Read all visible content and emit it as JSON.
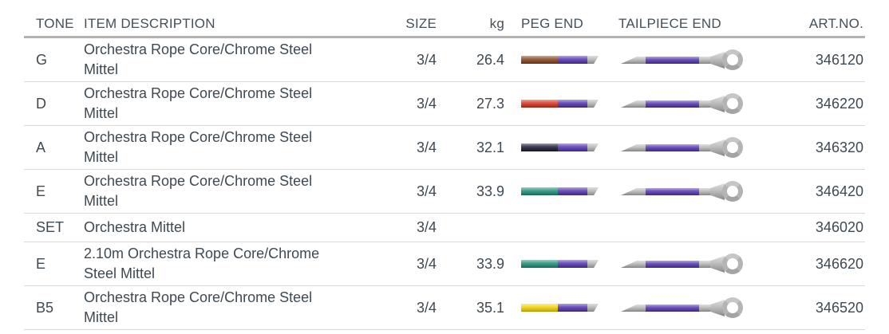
{
  "table": {
    "headers": {
      "tone": "TONE",
      "description": "ITEM DESCRIPTION",
      "size": "SIZE",
      "kg": "kg",
      "peg_end": "PEG END",
      "tailpiece_end": "TAILPIECE END",
      "art_no": "ART.NO."
    },
    "string_colors": {
      "winding_purple": "#5b3db4",
      "silk_grey": "#b8b8b8",
      "ring_grey": "#b4b4b4"
    },
    "rows": [
      {
        "tone": "G",
        "description": "Orchestra Rope Core/Chrome Steel Mittel",
        "size": "3/4",
        "kg": "26.4",
        "has_graphics": true,
        "peg_color_name": "brown",
        "peg_color": "#8a4a28",
        "art_no": "346120"
      },
      {
        "tone": "D",
        "description": "Orchestra Rope Core/Chrome Steel Mittel",
        "size": "3/4",
        "kg": "27.3",
        "has_graphics": true,
        "peg_color_name": "red",
        "peg_color": "#d93a26",
        "art_no": "346220"
      },
      {
        "tone": "A",
        "description": "Orchestra Rope Core/Chrome Steel Mittel",
        "size": "3/4",
        "kg": "32.1",
        "has_graphics": true,
        "peg_color_name": "black",
        "peg_color": "#25253c",
        "art_no": "346320"
      },
      {
        "tone": "E",
        "description": "Orchestra Rope Core/Chrome Steel Mittel",
        "size": "3/4",
        "kg": "33.9",
        "has_graphics": true,
        "peg_color_name": "green",
        "peg_color": "#27947c",
        "art_no": "346420"
      },
      {
        "tone": "SET",
        "description": "Orchestra Mittel",
        "size": "3/4",
        "kg": "",
        "has_graphics": false,
        "peg_color_name": "",
        "peg_color": "",
        "art_no": "346020"
      },
      {
        "tone": "E",
        "description": "2.10m Orchestra Rope Core/Chrome Steel Mittel",
        "size": "3/4",
        "kg": "33.9",
        "has_graphics": true,
        "peg_color_name": "green",
        "peg_color": "#27947c",
        "art_no": "346620"
      },
      {
        "tone": "B5",
        "description": "Orchestra Rope Core/Chrome Steel Mittel",
        "size": "3/4",
        "kg": "35.1",
        "has_graphics": true,
        "peg_color_name": "yellow",
        "peg_color": "#f6d511",
        "art_no": "346520"
      }
    ]
  }
}
